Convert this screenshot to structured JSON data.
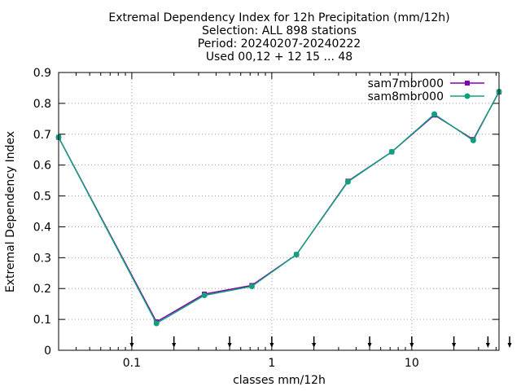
{
  "chart_data": {
    "type": "line",
    "title_lines": [
      "Extremal Dependency Index  for 12h Precipitation (mm/12h)",
      "Selection: ALL    898 stations",
      "Period: 20240207-20240222",
      "Used 00,12 + 12 15 ... 48"
    ],
    "xlabel": "classes mm/12h",
    "ylabel": "Extremal Dependency Index",
    "x_scale": "log",
    "xlim": [
      0.03,
      42
    ],
    "ylim": [
      0,
      0.9
    ],
    "x_ticks": [
      {
        "value": 0.1,
        "label": "0.1"
      },
      {
        "value": 1,
        "label": "1"
      },
      {
        "value": 10,
        "label": "10"
      }
    ],
    "y_ticks": [
      {
        "value": 0,
        "label": "0"
      },
      {
        "value": 0.1,
        "label": "0.1"
      },
      {
        "value": 0.2,
        "label": "0.2"
      },
      {
        "value": 0.3,
        "label": "0.3"
      },
      {
        "value": 0.4,
        "label": "0.4"
      },
      {
        "value": 0.5,
        "label": "0.5"
      },
      {
        "value": 0.6,
        "label": "0.6"
      },
      {
        "value": 0.7,
        "label": "0.7"
      },
      {
        "value": 0.8,
        "label": "0.8"
      },
      {
        "value": 0.9,
        "label": "0.9"
      }
    ],
    "grid": true,
    "legend_position": "top-right",
    "class_markers": [
      0.1,
      0.2,
      0.5,
      1,
      2,
      5,
      10,
      20,
      35,
      50
    ],
    "series": [
      {
        "name": "sam7mbr000",
        "color": "#8000b0",
        "marker": "square",
        "x": [
          0.03,
          0.15,
          0.33,
          0.72,
          1.5,
          3.5,
          7.2,
          14.5,
          27.5,
          42
        ],
        "y": [
          0.69,
          0.092,
          0.182,
          0.21,
          0.31,
          0.548,
          0.643,
          0.762,
          0.683,
          0.837
        ]
      },
      {
        "name": "sam8mbr000",
        "color": "#11a07c",
        "marker": "circle",
        "x": [
          0.03,
          0.15,
          0.33,
          0.72,
          1.5,
          3.5,
          7.2,
          14.5,
          27.5,
          42
        ],
        "y": [
          0.69,
          0.087,
          0.178,
          0.207,
          0.31,
          0.546,
          0.643,
          0.765,
          0.68,
          0.838
        ]
      }
    ]
  }
}
